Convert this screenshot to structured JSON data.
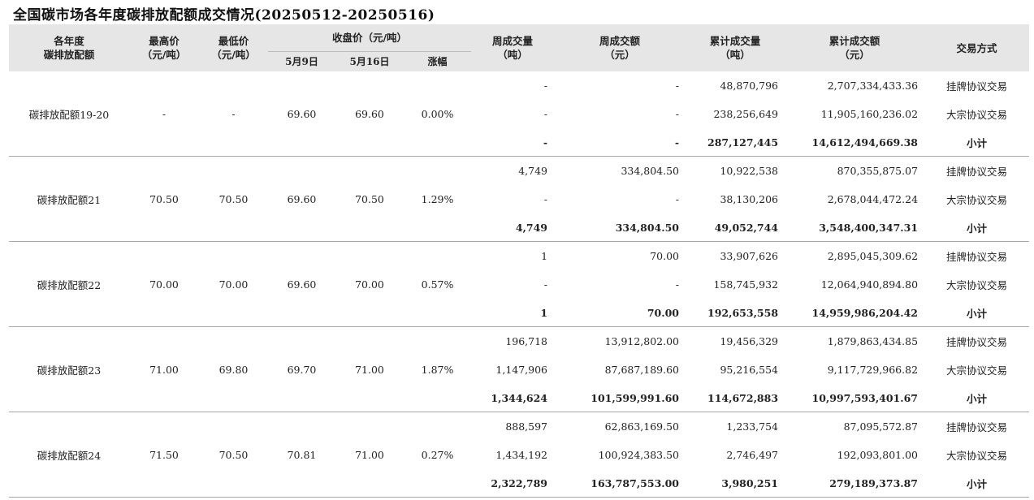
{
  "title": "全国碳市场各年度碳排放配额成交情况(20250512-20250516)",
  "header": {
    "col_year": "各年度\n碳排放配额",
    "col_high": "最高价\n（元/吨）",
    "col_low": "最低价\n（元/吨）",
    "col_close": "收盘价（元/吨）",
    "col_close_d1": "5月9日",
    "col_close_d2": "5月16日",
    "col_change": "涨幅",
    "col_week_vol": "周成交量\n（吨）",
    "col_week_amt": "周成交额\n（元）",
    "col_cum_vol": "累计成交量\n（吨）",
    "col_cum_amt": "累计成交额\n（元）",
    "col_method": "交易方式"
  },
  "groups": [
    {
      "name": "碳排放配额19-20",
      "high": "-",
      "low": "-",
      "close_d1": "69.60",
      "close_d2": "69.60",
      "change": "0.00%",
      "rows": [
        {
          "week_vol": "-",
          "week_amt": "-",
          "cum_vol": "48,870,796",
          "cum_amt": "2,707,334,433.36",
          "method": "挂牌协议交易"
        },
        {
          "week_vol": "-",
          "week_amt": "-",
          "cum_vol": "238,256,649",
          "cum_amt": "11,905,160,236.02",
          "method": "大宗协议交易"
        },
        {
          "week_vol": "-",
          "week_amt": "-",
          "cum_vol": "287,127,445",
          "cum_amt": "14,612,494,669.38",
          "method": "小计"
        }
      ]
    },
    {
      "name": "碳排放配额21",
      "high": "70.50",
      "low": "70.50",
      "close_d1": "69.60",
      "close_d2": "70.50",
      "change": "1.29%",
      "rows": [
        {
          "week_vol": "4,749",
          "week_amt": "334,804.50",
          "cum_vol": "10,922,538",
          "cum_amt": "870,355,875.07",
          "method": "挂牌协议交易"
        },
        {
          "week_vol": "-",
          "week_amt": "-",
          "cum_vol": "38,130,206",
          "cum_amt": "2,678,044,472.24",
          "method": "大宗协议交易"
        },
        {
          "week_vol": "4,749",
          "week_amt": "334,804.50",
          "cum_vol": "49,052,744",
          "cum_amt": "3,548,400,347.31",
          "method": "小计"
        }
      ]
    },
    {
      "name": "碳排放配额22",
      "high": "70.00",
      "low": "70.00",
      "close_d1": "69.60",
      "close_d2": "70.00",
      "change": "0.57%",
      "rows": [
        {
          "week_vol": "1",
          "week_amt": "70.00",
          "cum_vol": "33,907,626",
          "cum_amt": "2,895,045,309.62",
          "method": "挂牌协议交易"
        },
        {
          "week_vol": "-",
          "week_amt": "-",
          "cum_vol": "158,745,932",
          "cum_amt": "12,064,940,894.80",
          "method": "大宗协议交易"
        },
        {
          "week_vol": "1",
          "week_amt": "70.00",
          "cum_vol": "192,653,558",
          "cum_amt": "14,959,986,204.42",
          "method": "小计"
        }
      ]
    },
    {
      "name": "碳排放配额23",
      "high": "71.00",
      "low": "69.80",
      "close_d1": "69.70",
      "close_d2": "71.00",
      "change": "1.87%",
      "rows": [
        {
          "week_vol": "196,718",
          "week_amt": "13,912,802.00",
          "cum_vol": "19,456,329",
          "cum_amt": "1,879,863,434.85",
          "method": "挂牌协议交易"
        },
        {
          "week_vol": "1,147,906",
          "week_amt": "87,687,189.60",
          "cum_vol": "95,216,554",
          "cum_amt": "9,117,729,966.82",
          "method": "大宗协议交易"
        },
        {
          "week_vol": "1,344,624",
          "week_amt": "101,599,991.60",
          "cum_vol": "114,672,883",
          "cum_amt": "10,997,593,401.67",
          "method": "小计"
        }
      ]
    },
    {
      "name": "碳排放配额24",
      "high": "71.50",
      "low": "70.50",
      "close_d1": "70.81",
      "close_d2": "71.00",
      "change": "0.27%",
      "rows": [
        {
          "week_vol": "888,597",
          "week_amt": "62,863,169.50",
          "cum_vol": "1,233,754",
          "cum_amt": "87,095,572.87",
          "method": "挂牌协议交易"
        },
        {
          "week_vol": "1,434,192",
          "week_amt": "100,924,383.50",
          "cum_vol": "2,746,497",
          "cum_amt": "192,093,801.00",
          "method": "大宗协议交易"
        },
        {
          "week_vol": "2,322,789",
          "week_amt": "163,787,553.00",
          "cum_vol": "3,980,251",
          "cum_amt": "279,189,373.87",
          "method": "小计"
        }
      ]
    }
  ]
}
